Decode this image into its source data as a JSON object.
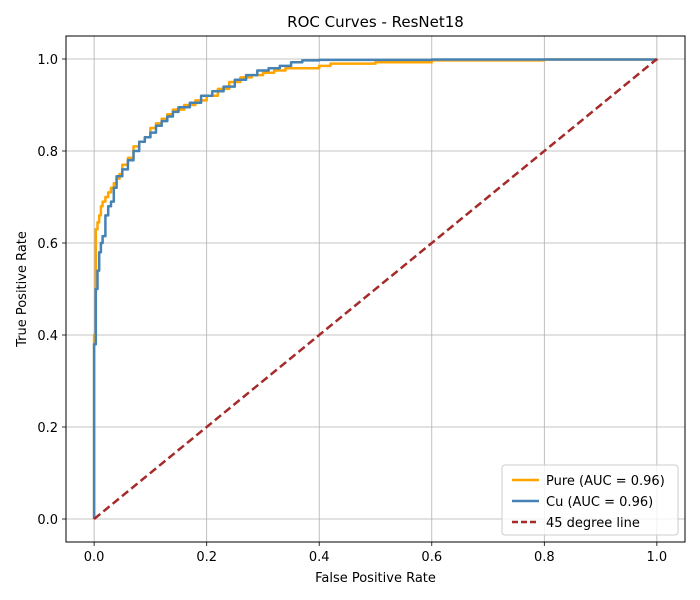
{
  "chart_data": {
    "type": "line",
    "title": "ROC Curves - ResNet18",
    "xlabel": "False Positive Rate",
    "ylabel": "True Positive Rate",
    "xlim": [
      -0.05,
      1.05
    ],
    "ylim": [
      -0.05,
      1.05
    ],
    "xticks": [
      "0.0",
      "0.2",
      "0.4",
      "0.6",
      "0.8",
      "1.0"
    ],
    "yticks": [
      "0.0",
      "0.2",
      "0.4",
      "0.6",
      "0.8",
      "1.0"
    ],
    "xtick_values": [
      0,
      0.2,
      0.4,
      0.6,
      0.8,
      1.0
    ],
    "ytick_values": [
      0,
      0.2,
      0.4,
      0.6,
      0.8,
      1.0
    ],
    "grid": true,
    "legend_position": "bottom-right",
    "series": [
      {
        "name": "Pure (AUC = 0.96)",
        "color": "#ffa500",
        "style": "solid",
        "x": [
          0,
          0,
          0.003,
          0.003,
          0.006,
          0.009,
          0.012,
          0.015,
          0.02,
          0.025,
          0.03,
          0.035,
          0.04,
          0.045,
          0.05,
          0.06,
          0.07,
          0.08,
          0.09,
          0.1,
          0.11,
          0.12,
          0.13,
          0.14,
          0.16,
          0.18,
          0.2,
          0.22,
          0.24,
          0.26,
          0.28,
          0.3,
          0.32,
          0.34,
          0.38,
          0.4,
          0.42,
          0.45,
          0.5,
          0.6,
          0.8,
          1.0
        ],
        "y": [
          0,
          0.4,
          0.5,
          0.63,
          0.645,
          0.66,
          0.68,
          0.69,
          0.7,
          0.71,
          0.72,
          0.73,
          0.74,
          0.75,
          0.77,
          0.785,
          0.81,
          0.82,
          0.83,
          0.85,
          0.86,
          0.87,
          0.88,
          0.89,
          0.9,
          0.91,
          0.92,
          0.935,
          0.95,
          0.96,
          0.965,
          0.97,
          0.975,
          0.98,
          0.98,
          0.985,
          0.99,
          0.99,
          0.993,
          0.997,
          0.999,
          1.0
        ]
      },
      {
        "name": "Cu (AUC = 0.96)",
        "color": "#4682b4",
        "style": "solid",
        "x": [
          0,
          0,
          0.003,
          0.003,
          0.006,
          0.009,
          0.012,
          0.015,
          0.02,
          0.025,
          0.03,
          0.035,
          0.04,
          0.05,
          0.06,
          0.07,
          0.08,
          0.09,
          0.1,
          0.11,
          0.12,
          0.13,
          0.14,
          0.15,
          0.17,
          0.19,
          0.21,
          0.23,
          0.25,
          0.27,
          0.29,
          0.31,
          0.33,
          0.35,
          0.37,
          0.4,
          0.5,
          0.6,
          0.8,
          1.0
        ],
        "y": [
          0,
          0.38,
          0.45,
          0.5,
          0.54,
          0.58,
          0.6,
          0.615,
          0.66,
          0.68,
          0.69,
          0.72,
          0.745,
          0.76,
          0.78,
          0.8,
          0.82,
          0.83,
          0.84,
          0.855,
          0.865,
          0.875,
          0.885,
          0.895,
          0.905,
          0.92,
          0.93,
          0.94,
          0.955,
          0.965,
          0.975,
          0.98,
          0.985,
          0.993,
          0.997,
          0.998,
          0.998,
          0.999,
          0.999,
          1.0
        ]
      },
      {
        "name": "45 degree line",
        "color": "#a52a2a",
        "style": "dashed",
        "x": [
          0,
          1
        ],
        "y": [
          0,
          1
        ]
      }
    ]
  }
}
